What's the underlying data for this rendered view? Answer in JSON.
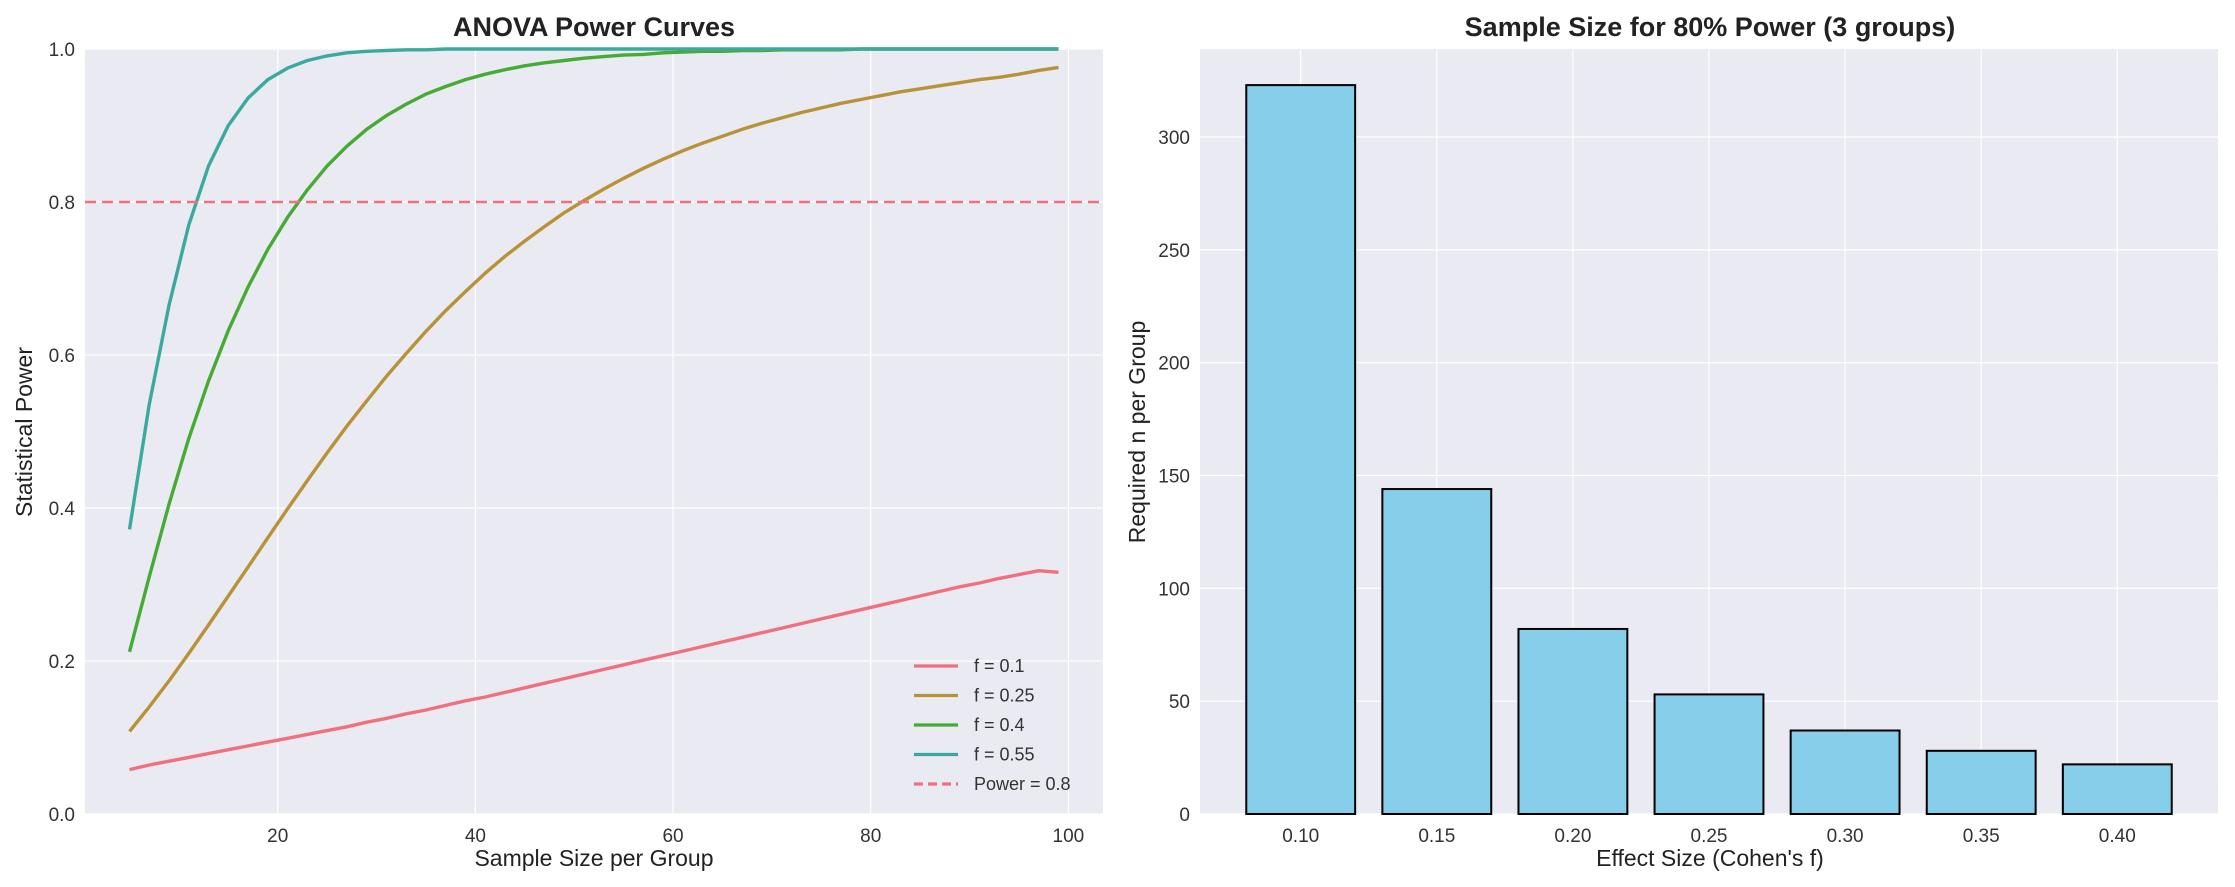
{
  "chart_data": [
    {
      "type": "line",
      "title": "ANOVA Power Curves",
      "xlabel": "Sample Size per Group",
      "ylabel": "Statistical Power",
      "xlim": [
        0.5,
        103.5
      ],
      "ylim": [
        0,
        1
      ],
      "xticks": [
        "20",
        "40",
        "60",
        "80",
        "100"
      ],
      "yticks": [
        "0.0",
        "0.2",
        "0.4",
        "0.6",
        "0.8",
        "1.0"
      ],
      "grid": true,
      "legend_position": "lower-right",
      "x": [
        5,
        7,
        9,
        11,
        13,
        15,
        17,
        19,
        21,
        23,
        25,
        27,
        29,
        31,
        33,
        35,
        37,
        39,
        41,
        43,
        45,
        47,
        49,
        51,
        53,
        55,
        57,
        59,
        61,
        63,
        65,
        67,
        69,
        71,
        73,
        75,
        77,
        79,
        81,
        83,
        85,
        87,
        89,
        91,
        93,
        95,
        97,
        99
      ],
      "series": [
        {
          "name": "f = 0.1",
          "color": "#f0707f",
          "values": [
            0.058,
            0.064,
            0.069,
            0.074,
            0.079,
            0.084,
            0.089,
            0.094,
            0.099,
            0.104,
            0.109,
            0.114,
            0.12,
            0.125,
            0.131,
            0.136,
            0.142,
            0.148,
            0.153,
            0.159,
            0.165,
            0.171,
            0.177,
            0.183,
            0.189,
            0.195,
            0.201,
            0.207,
            0.213,
            0.219,
            0.225,
            0.231,
            0.237,
            0.243,
            0.249,
            0.255,
            0.261,
            0.267,
            0.273,
            0.279,
            0.285,
            0.291,
            0.297,
            0.302,
            0.308,
            0.313,
            0.318,
            0.316
          ]
        },
        {
          "name": "f = 0.25",
          "color": "#b89236",
          "values": [
            0.108,
            0.14,
            0.174,
            0.21,
            0.247,
            0.285,
            0.323,
            0.361,
            0.399,
            0.436,
            0.472,
            0.507,
            0.54,
            0.572,
            0.602,
            0.631,
            0.658,
            0.683,
            0.707,
            0.729,
            0.749,
            0.768,
            0.786,
            0.802,
            0.817,
            0.831,
            0.844,
            0.856,
            0.867,
            0.877,
            0.886,
            0.895,
            0.903,
            0.91,
            0.917,
            0.923,
            0.929,
            0.934,
            0.939,
            0.944,
            0.948,
            0.952,
            0.956,
            0.96,
            0.963,
            0.967,
            0.972,
            0.976
          ]
        },
        {
          "name": "f = 0.4",
          "color": "#46ab35",
          "values": [
            0.212,
            0.31,
            0.405,
            0.491,
            0.566,
            0.632,
            0.689,
            0.738,
            0.78,
            0.816,
            0.847,
            0.873,
            0.895,
            0.913,
            0.928,
            0.941,
            0.951,
            0.96,
            0.967,
            0.973,
            0.978,
            0.982,
            0.985,
            0.988,
            0.99,
            0.992,
            0.993,
            0.995,
            0.996,
            0.997,
            0.997,
            0.998,
            0.998,
            0.999,
            0.999,
            0.999,
            0.999,
            1.0,
            1.0,
            1.0,
            1.0,
            1.0,
            1.0,
            1.0,
            1.0,
            1.0,
            1.0,
            1.0
          ]
        },
        {
          "name": "f = 0.55",
          "color": "#3aaa9e",
          "values": [
            0.372,
            0.535,
            0.665,
            0.77,
            0.847,
            0.9,
            0.936,
            0.96,
            0.975,
            0.985,
            0.991,
            0.995,
            0.997,
            0.998,
            0.999,
            0.999,
            1.0,
            1.0,
            1.0,
            1.0,
            1.0,
            1.0,
            1.0,
            1.0,
            1.0,
            1.0,
            1.0,
            1.0,
            1.0,
            1.0,
            1.0,
            1.0,
            1.0,
            1.0,
            1.0,
            1.0,
            1.0,
            1.0,
            1.0,
            1.0,
            1.0,
            1.0,
            1.0,
            1.0,
            1.0,
            1.0,
            1.0,
            1.0
          ]
        }
      ],
      "reference_line": {
        "name": "Power = 0.8",
        "y": 0.8,
        "color": "#f0707f",
        "style": "dashed"
      }
    },
    {
      "type": "bar",
      "title": "Sample Size for 80% Power (3 groups)",
      "xlabel": "Effect Size (Cohen's f)",
      "ylabel": "Required n per Group",
      "categories": [
        "0.10",
        "0.15",
        "0.20",
        "0.25",
        "0.30",
        "0.35",
        "0.40"
      ],
      "values": [
        323,
        144,
        82,
        53,
        37,
        28,
        22
      ],
      "ylim": [
        0,
        339
      ],
      "yticks": [
        "0",
        "50",
        "100",
        "150",
        "200",
        "250",
        "300"
      ],
      "bar_color": "#87ceeb",
      "edge_color": "#000000",
      "grid": true
    }
  ]
}
